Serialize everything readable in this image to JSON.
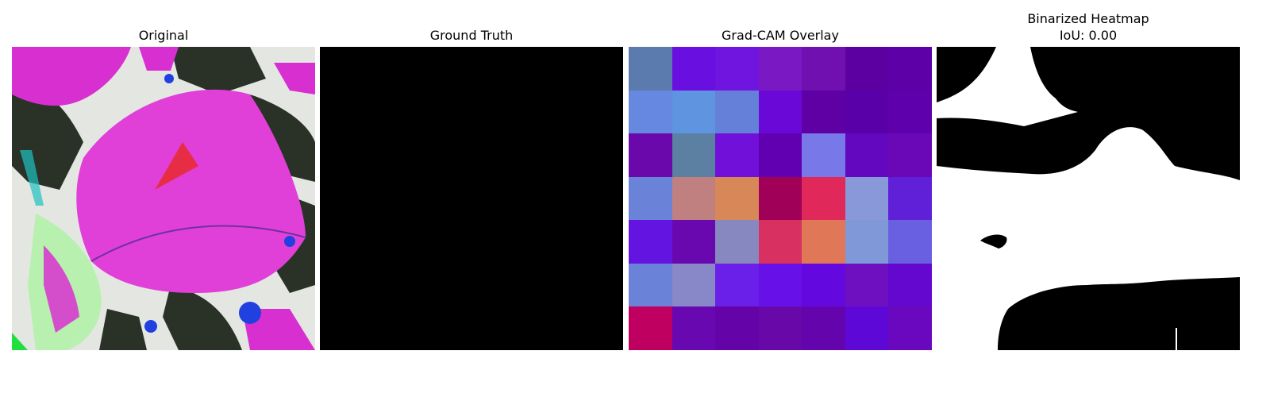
{
  "panels": [
    {
      "title": "Original"
    },
    {
      "title": "Ground Truth"
    },
    {
      "title": "Grad-CAM Overlay"
    },
    {
      "title": "Binarized Heatmap",
      "subtitle": "IoU: 0.00"
    }
  ],
  "gradcam_cells": [
    [
      "#5b7aad",
      "#6910e0",
      "#7014e0",
      "#7a18c4",
      "#7010b0",
      "#5c00a2",
      "#5e00a8"
    ],
    [
      "#6688e0",
      "#5e94e0",
      "#6480d8",
      "#6a08d8",
      "#5e00a4",
      "#5a00a8",
      "#5e00ac"
    ],
    [
      "#6a08ac",
      "#5c80a2",
      "#7010d8",
      "#6000b0",
      "#7878e8",
      "#6408c0",
      "#6a08b8"
    ],
    [
      "#6a82d8",
      "#c08080",
      "#d88858",
      "#a00058",
      "#e0285a",
      "#8898d8",
      "#6020d8"
    ],
    [
      "#6414e0",
      "#6a08b0",
      "#8888c0",
      "#d83060",
      "#e07858",
      "#8098d8",
      "#6860e0"
    ],
    [
      "#6a82d8",
      "#8888c8",
      "#6a20e8",
      "#6810e8",
      "#6408e0",
      "#6e10c0",
      "#6408d0"
    ],
    [
      "#c00060",
      "#6808b0",
      "#6404a8",
      "#6808a8",
      "#6404ac",
      "#5e08d8",
      "#6a08c0"
    ]
  ]
}
